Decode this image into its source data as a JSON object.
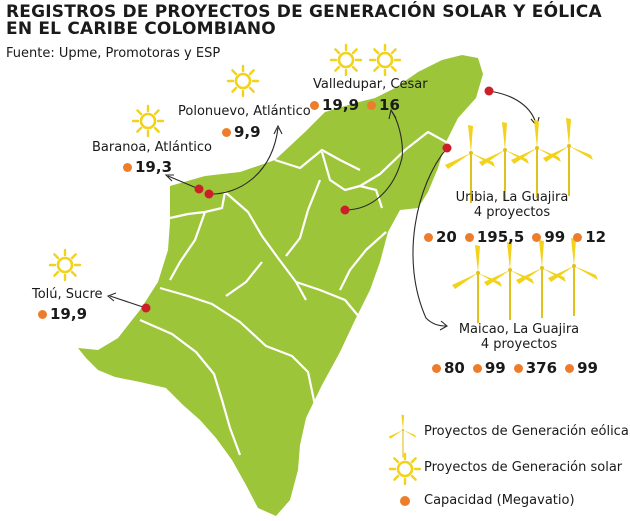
{
  "title_line1": "REGISTROS DE PROYECTOS DE GENERACIÓN SOLAR Y EÓLICA",
  "title_line2": "EN EL CARIBE COLOMBIANO",
  "source": "Fuente: Upme, Promotoras y ESP",
  "colors": {
    "land": "#9dc53a",
    "border": "#ffffff",
    "point": "#cc1f2a",
    "capacity_dot": "#ee7d2b",
    "icon": "#f2d21b"
  },
  "sites": {
    "polonuevo": {
      "name": "Polonuevo, Atlántico",
      "caps": [
        "9,9"
      ],
      "icon": "sun-icon"
    },
    "baranoa": {
      "name": "Baranoa, Atlántico",
      "caps": [
        "19,3"
      ],
      "icon": "sun-icon"
    },
    "valledupar": {
      "name": "Valledupar, Cesar",
      "caps": [
        "19,9",
        "16"
      ],
      "icon": "sun-icon"
    },
    "tolu": {
      "name": "Tolú, Sucre",
      "caps": [
        "19,9"
      ],
      "icon": "sun-icon"
    },
    "uribia": {
      "name": "Uribia, La Guajira",
      "sub": "4 proyectos",
      "caps": [
        "20",
        "195,5",
        "99",
        "12"
      ],
      "icon": "wind-turbine-icon"
    },
    "maicao": {
      "name": "Maicao, La Guajira",
      "sub": "4 proyectos",
      "caps": [
        "80",
        "99",
        "376",
        "99"
      ],
      "icon": "wind-turbine-icon"
    }
  },
  "legend": {
    "wind": "Proyectos de Generación eólica",
    "solar": "Proyectos de Generación solar",
    "capacity": "Capacidad (Megavatio)"
  }
}
